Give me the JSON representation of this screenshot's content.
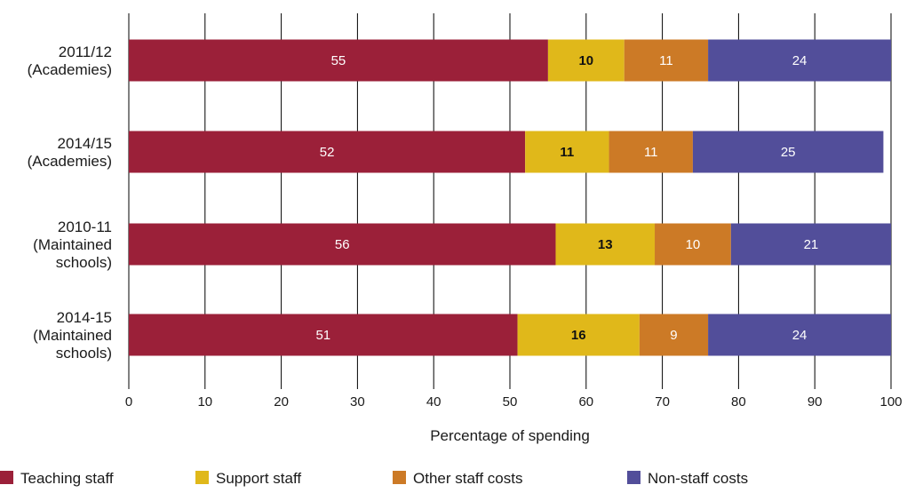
{
  "chart_data": {
    "type": "bar",
    "orientation": "horizontal",
    "stacked": true,
    "title": "",
    "xlabel": "Percentage of spending",
    "ylabel": "",
    "xlim": [
      0,
      100
    ],
    "xticks": [
      0,
      10,
      20,
      30,
      40,
      50,
      60,
      70,
      80,
      90,
      100
    ],
    "grid": "vertical",
    "legend_position": "bottom",
    "categories": [
      [
        "2011/12",
        "(Academies)"
      ],
      [
        "2014/15",
        "(Academies)"
      ],
      [
        "2010-11",
        "(Maintained",
        "schools)"
      ],
      [
        "2014-15",
        "(Maintained",
        "schools)"
      ]
    ],
    "series": [
      {
        "name": "Teaching staff",
        "color": "#9b2039",
        "label_color": "#ffffff",
        "label_bold": false,
        "values": [
          55,
          52,
          56,
          51
        ]
      },
      {
        "name": "Support staff",
        "color": "#e0b81a",
        "label_color": "#111111",
        "label_bold": true,
        "values": [
          10,
          11,
          13,
          16
        ]
      },
      {
        "name": "Other staff costs",
        "color": "#cc7a26",
        "label_color": "#ffffff",
        "label_bold": false,
        "values": [
          11,
          11,
          10,
          9
        ]
      },
      {
        "name": "Non-staff costs",
        "color": "#524e9a",
        "label_color": "#ffffff",
        "label_bold": false,
        "values": [
          24,
          25,
          21,
          24
        ]
      }
    ]
  }
}
